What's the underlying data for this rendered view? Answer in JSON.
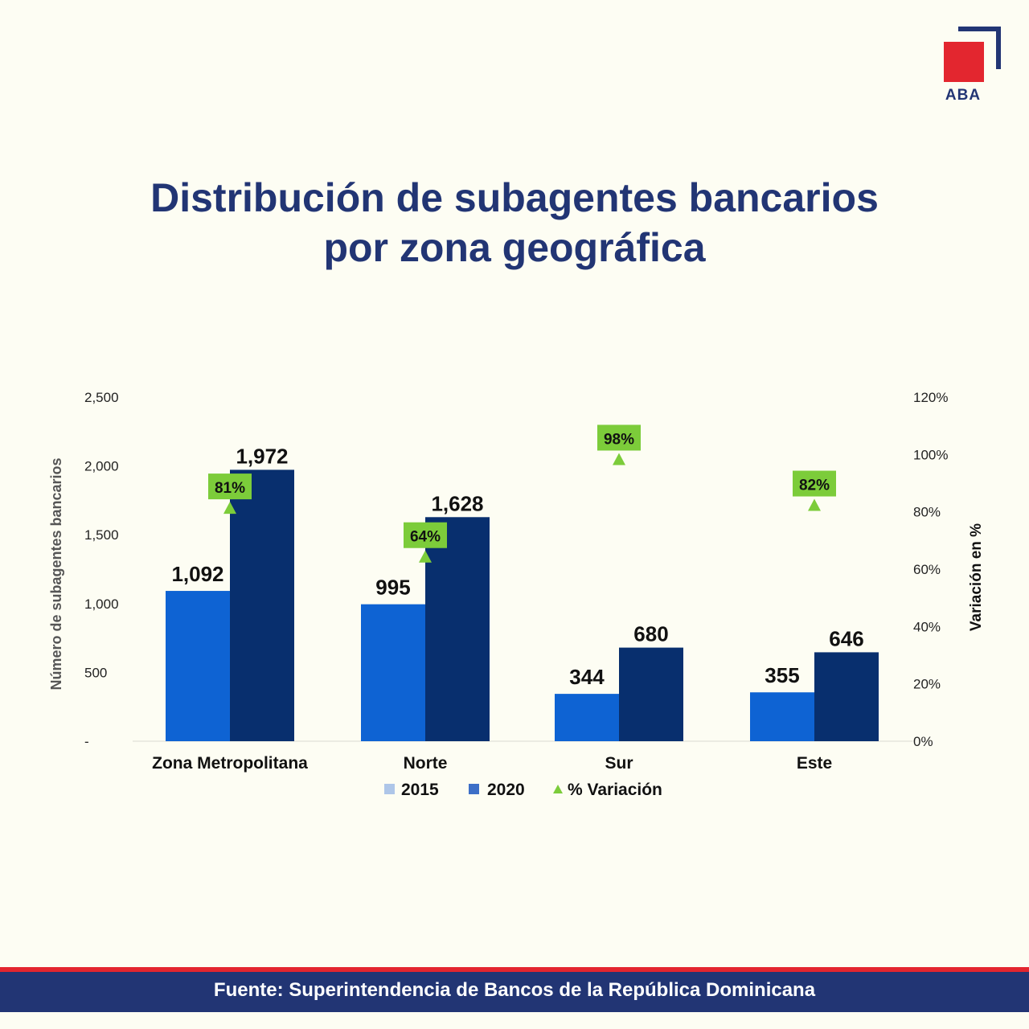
{
  "brand": {
    "logo_text": "ABA"
  },
  "title": {
    "line1": "Distribución de subagentes bancarios",
    "line2": "por zona geográfica"
  },
  "footer": {
    "source": "Fuente: Superintendencia de Bancos de la República Dominicana"
  },
  "colors": {
    "bar_2015": "#0e63d3",
    "bar_2020": "#082f6e",
    "variation": "#7ccc3a",
    "title": "#223574",
    "accent_red": "#e3262f",
    "label_box": "#7ccc3a",
    "legend_2015": "#aec6e8",
    "legend_2020": "#3d6fc7"
  },
  "chart_data": {
    "type": "bar",
    "categories": [
      "Zona Metropolitana",
      "Norte",
      "Sur",
      "Este"
    ],
    "series": [
      {
        "name": "2015",
        "values": [
          1092,
          995,
          344,
          355
        ],
        "labels": [
          "1,092",
          "995",
          "344",
          "355"
        ]
      },
      {
        "name": "2020",
        "values": [
          1972,
          1628,
          680,
          646
        ],
        "labels": [
          "1,972",
          "1,628",
          "680",
          "646"
        ]
      }
    ],
    "variation": {
      "name": "% Variación",
      "values": [
        81,
        64,
        98,
        82
      ],
      "labels": [
        "81%",
        "64%",
        "98%",
        "82%"
      ]
    },
    "ylabel": "Número de subagentes bancarios",
    "ylim": [
      0,
      2500
    ],
    "yticks": [
      0,
      500,
      1000,
      1500,
      2000,
      2500
    ],
    "ytick_labels": [
      "-",
      "500",
      "1,000",
      "1,500",
      "2,000",
      "2,500"
    ],
    "y2label": "Variación en %",
    "y2lim": [
      0,
      120
    ],
    "y2ticks": [
      0,
      20,
      40,
      60,
      80,
      100,
      120
    ],
    "y2tick_labels": [
      "0%",
      "20%",
      "40%",
      "60%",
      "80%",
      "100%",
      "120%"
    ],
    "legend": [
      "2015",
      "2020",
      "% Variación"
    ],
    "legend_position": "bottom"
  }
}
